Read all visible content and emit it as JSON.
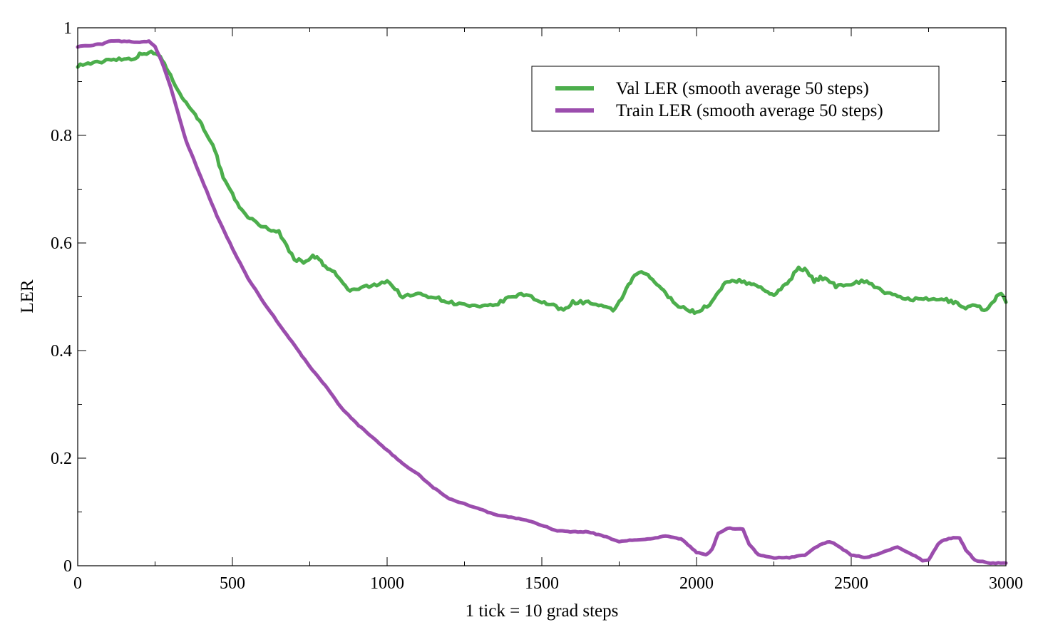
{
  "chart_data": {
    "type": "line",
    "title": "",
    "xlabel": "1 tick = 10 grad steps",
    "ylabel": "LER",
    "xlim": [
      0,
      3000
    ],
    "ylim": [
      0,
      1
    ],
    "x_ticks": [
      0,
      500,
      1000,
      1500,
      2000,
      2500,
      3000
    ],
    "y_ticks": [
      0,
      0.2,
      0.4,
      0.6,
      0.8,
      1
    ],
    "x_tick_labels": [
      "0",
      "500",
      "1000",
      "1500",
      "2000",
      "2500",
      "3000"
    ],
    "y_tick_labels": [
      "0",
      "0.2",
      "0.4",
      "0.6",
      "0.8",
      "1"
    ],
    "grid": false,
    "legend_position": "top-right",
    "series": [
      {
        "name": "Val LER (smooth average 50 steps)",
        "color": "#4cae4c",
        "x": [
          0,
          50,
          70,
          100,
          150,
          180,
          200,
          230,
          260,
          280,
          300,
          330,
          350,
          380,
          400,
          430,
          450,
          470,
          500,
          530,
          550,
          570,
          600,
          650,
          700,
          730,
          760,
          780,
          800,
          830,
          850,
          880,
          900,
          950,
          1000,
          1050,
          1100,
          1150,
          1200,
          1250,
          1300,
          1350,
          1400,
          1450,
          1500,
          1530,
          1570,
          1600,
          1650,
          1700,
          1730,
          1750,
          1780,
          1800,
          1830,
          1850,
          1880,
          1900,
          1950,
          1980,
          2000,
          2050,
          2080,
          2100,
          2130,
          2170,
          2200,
          2230,
          2250,
          2280,
          2300,
          2330,
          2350,
          2380,
          2400,
          2430,
          2450,
          2500,
          2550,
          2600,
          2650,
          2700,
          2750,
          2800,
          2830,
          2850,
          2870,
          2900,
          2930,
          2950,
          2970,
          2985,
          3000
        ],
        "y": [
          0.93,
          0.935,
          0.935,
          0.942,
          0.942,
          0.943,
          0.95,
          0.955,
          0.95,
          0.935,
          0.91,
          0.88,
          0.86,
          0.84,
          0.82,
          0.79,
          0.76,
          0.72,
          0.69,
          0.66,
          0.65,
          0.64,
          0.63,
          0.62,
          0.57,
          0.565,
          0.575,
          0.57,
          0.555,
          0.545,
          0.53,
          0.51,
          0.515,
          0.52,
          0.53,
          0.5,
          0.505,
          0.5,
          0.49,
          0.485,
          0.48,
          0.485,
          0.5,
          0.505,
          0.49,
          0.485,
          0.475,
          0.49,
          0.49,
          0.48,
          0.475,
          0.49,
          0.52,
          0.54,
          0.545,
          0.535,
          0.52,
          0.505,
          0.48,
          0.475,
          0.47,
          0.49,
          0.515,
          0.53,
          0.53,
          0.525,
          0.52,
          0.51,
          0.5,
          0.52,
          0.53,
          0.555,
          0.55,
          0.53,
          0.535,
          0.53,
          0.52,
          0.525,
          0.53,
          0.51,
          0.5,
          0.495,
          0.495,
          0.495,
          0.49,
          0.485,
          0.48,
          0.485,
          0.475,
          0.485,
          0.5,
          0.505,
          0.49
        ]
      },
      {
        "name": "Train LER (smooth average 50 steps)",
        "color": "#9b4dad",
        "x": [
          0,
          50,
          80,
          100,
          150,
          200,
          230,
          250,
          270,
          300,
          330,
          350,
          400,
          450,
          500,
          550,
          600,
          650,
          700,
          750,
          800,
          850,
          900,
          950,
          1000,
          1050,
          1100,
          1150,
          1200,
          1250,
          1300,
          1350,
          1400,
          1450,
          1500,
          1550,
          1600,
          1650,
          1700,
          1750,
          1800,
          1850,
          1900,
          1950,
          1980,
          2000,
          2030,
          2050,
          2070,
          2100,
          2150,
          2170,
          2200,
          2250,
          2300,
          2350,
          2400,
          2430,
          2450,
          2500,
          2550,
          2600,
          2650,
          2700,
          2730,
          2750,
          2780,
          2800,
          2830,
          2850,
          2870,
          2900,
          2950,
          3000
        ],
        "y": [
          0.965,
          0.968,
          0.97,
          0.975,
          0.975,
          0.973,
          0.975,
          0.965,
          0.94,
          0.89,
          0.83,
          0.79,
          0.72,
          0.65,
          0.59,
          0.535,
          0.49,
          0.45,
          0.41,
          0.37,
          0.335,
          0.295,
          0.265,
          0.24,
          0.215,
          0.19,
          0.17,
          0.145,
          0.125,
          0.115,
          0.105,
          0.095,
          0.09,
          0.085,
          0.075,
          0.065,
          0.063,
          0.063,
          0.055,
          0.045,
          0.048,
          0.05,
          0.055,
          0.05,
          0.035,
          0.025,
          0.02,
          0.03,
          0.06,
          0.07,
          0.068,
          0.04,
          0.02,
          0.015,
          0.015,
          0.02,
          0.04,
          0.045,
          0.04,
          0.02,
          0.015,
          0.025,
          0.035,
          0.02,
          0.01,
          0.01,
          0.04,
          0.048,
          0.052,
          0.052,
          0.03,
          0.01,
          0.005,
          0.005
        ]
      }
    ]
  }
}
